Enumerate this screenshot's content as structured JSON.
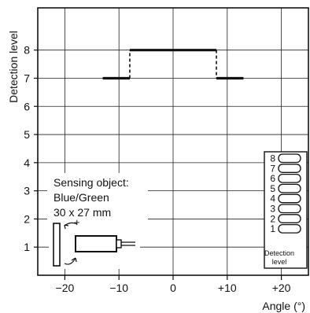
{
  "chart_data": {
    "type": "line",
    "ylabel": "Detection level",
    "xlabel": "Angle (°)",
    "xlim": [
      -25,
      25
    ],
    "ylim": [
      0,
      9.5
    ],
    "x_ticks": [
      -20,
      -10,
      0,
      10,
      20
    ],
    "x_tick_labels": [
      "−20",
      "−10",
      "0",
      "+10",
      "+20"
    ],
    "y_ticks": [
      1,
      2,
      3,
      4,
      5,
      6,
      7,
      8
    ],
    "y_tick_labels": [
      "1",
      "2",
      "3",
      "4",
      "5",
      "6",
      "7",
      "8"
    ],
    "grid": true,
    "series": [
      {
        "segments": [
          {
            "x": [
              -13,
              -8
            ],
            "y": [
              7,
              7
            ],
            "style": "solid"
          },
          {
            "x": [
              -8,
              -8
            ],
            "y": [
              7,
              8
            ],
            "style": "dashed"
          },
          {
            "x": [
              -8,
              8
            ],
            "y": [
              8,
              8
            ],
            "style": "solid"
          },
          {
            "x": [
              8,
              8
            ],
            "y": [
              8,
              7
            ],
            "style": "dashed"
          },
          {
            "x": [
              8,
              13
            ],
            "y": [
              7,
              7
            ],
            "style": "solid"
          }
        ]
      }
    ],
    "annotation": {
      "lines": [
        "Sensing object:",
        "Blue/Green",
        "30 x 27 mm"
      ],
      "rotation_sign": "+"
    },
    "level_indicator": {
      "levels": [
        "8",
        "7",
        "6",
        "5",
        "4",
        "3",
        "2",
        "1"
      ],
      "caption": [
        "Detection",
        "level"
      ]
    }
  }
}
